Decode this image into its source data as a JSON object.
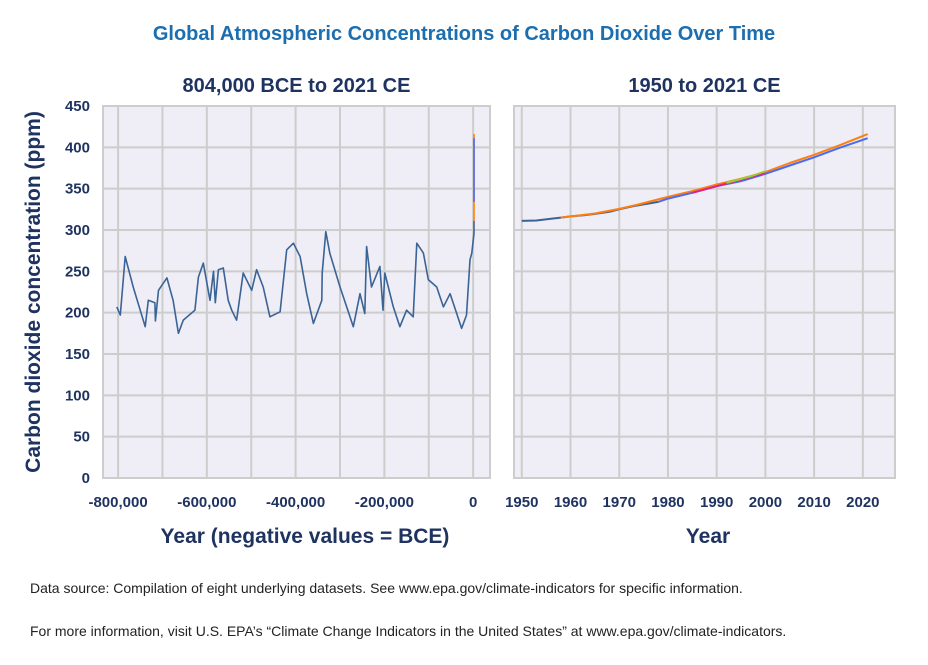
{
  "title": "Global Atmospheric Concentrations of Carbon Dioxide Over Time",
  "footnotes": [
    "Data source: Compilation of eight underlying datasets. See www.epa.gov/climate-indicators for specific information.",
    "For more information, visit U.S. EPA’s “Climate Change Indicators in the United States” at www.epa.gov/climate-indicators."
  ],
  "colors": {
    "title": "#1b6eb0",
    "text": "#1f3361",
    "plot_bg": "#efedf5",
    "grid": "#cdcdcd",
    "series": [
      "#3a6496",
      "#4a6cf0",
      "#ff7f0e",
      "#e0218a",
      "#9acd32"
    ]
  },
  "chart_data": [
    {
      "type": "line",
      "title": "804,000 BCE to 2021 CE",
      "xlabel": "Year (negative values = BCE)",
      "ylabel": "Carbon dioxide concentration (ppm)",
      "xlim": [
        -834000,
        38000
      ],
      "ylim": [
        0,
        450
      ],
      "grid": true,
      "xticks": [
        -800000,
        -600000,
        -400000,
        -200000,
        0
      ],
      "xtick_labels": [
        "-800,000",
        "-600,000",
        "-400,000",
        "-200,000",
        "0"
      ],
      "yticks": [
        0,
        50,
        100,
        150,
        200,
        250,
        300,
        350,
        400,
        450
      ],
      "series": [
        {
          "color": "#3a6496",
          "points": [
            [
              -803000,
              207
            ],
            [
              -795000,
              197
            ],
            [
              -784000,
              268
            ],
            [
              -766000,
              231
            ],
            [
              -739000,
              183
            ],
            [
              -732000,
              215
            ],
            [
              -717000,
              212
            ],
            [
              -716000,
              190
            ],
            [
              -709000,
              227
            ],
            [
              -690000,
              242
            ],
            [
              -676000,
              215
            ],
            [
              -664000,
              175
            ],
            [
              -653000,
              191
            ],
            [
              -627000,
              203
            ],
            [
              -619000,
              243
            ],
            [
              -608000,
              260
            ],
            [
              -593000,
              215
            ],
            [
              -585000,
              250
            ],
            [
              -581000,
              212
            ],
            [
              -574000,
              252
            ],
            [
              -563000,
              254
            ],
            [
              -552000,
              215
            ],
            [
              -544000,
              203
            ],
            [
              -533000,
              191
            ],
            [
              -518000,
              248
            ],
            [
              -499000,
              227
            ],
            [
              -488000,
              252
            ],
            [
              -473000,
              231
            ],
            [
              -458000,
              195
            ],
            [
              -435000,
              201
            ],
            [
              -420000,
              276
            ],
            [
              -405000,
              284
            ],
            [
              -390000,
              268
            ],
            [
              -375000,
              223
            ],
            [
              -360000,
              187
            ],
            [
              -341000,
              215
            ],
            [
              -340000,
              248
            ],
            [
              -332000,
              298
            ],
            [
              -323000,
              272
            ],
            [
              -300000,
              231
            ],
            [
              -285000,
              207
            ],
            [
              -270000,
              183
            ],
            [
              -255000,
              223
            ],
            [
              -244000,
              199
            ],
            [
              -240000,
              280
            ],
            [
              -229000,
              231
            ],
            [
              -210000,
              256
            ],
            [
              -203000,
              203
            ],
            [
              -199000,
              248
            ],
            [
              -180000,
              207
            ],
            [
              -165000,
              183
            ],
            [
              -150000,
              203
            ],
            [
              -135000,
              195
            ],
            [
              -127000,
              284
            ],
            [
              -112000,
              272
            ],
            [
              -101000,
              240
            ],
            [
              -82000,
              231
            ],
            [
              -67000,
              207
            ],
            [
              -52000,
              223
            ],
            [
              -37000,
              199
            ],
            [
              -26000,
              181
            ],
            [
              -15000,
              197
            ],
            [
              -7000,
              264
            ],
            [
              -3000,
              272
            ],
            [
              1900,
              296
            ],
            [
              1950,
              311
            ]
          ]
        },
        {
          "color": "#ff7f0e",
          "points": [
            [
              1950,
              311
            ],
            [
              1970,
              330
            ],
            [
              2021,
              416
            ]
          ]
        },
        {
          "color": "#4a6cf0",
          "points": [
            [
              1978,
              334
            ],
            [
              2021,
              411
            ]
          ]
        }
      ]
    },
    {
      "type": "line",
      "title": "1950 to 2021 CE",
      "xlabel": "Year",
      "xlim": [
        1948.4,
        2026.6
      ],
      "ylim": [
        0,
        450
      ],
      "grid": true,
      "xticks": [
        1950,
        1960,
        1970,
        1980,
        1990,
        2000,
        2010,
        2020
      ],
      "yticks": [
        0,
        50,
        100,
        150,
        200,
        250,
        300,
        350,
        400,
        450
      ],
      "series": [
        {
          "color": "#3a6496",
          "points": [
            [
              1950,
              311
            ],
            [
              1953,
              311.5
            ],
            [
              1956,
              313.5
            ],
            [
              1958,
              315
            ],
            [
              1960,
              316.5
            ],
            [
              1963,
              318
            ],
            [
              1965,
              319.5
            ],
            [
              1968,
              322
            ],
            [
              1970,
              325
            ],
            [
              1973,
              329
            ],
            [
              1975,
              331
            ],
            [
              1978,
              334
            ]
          ]
        },
        {
          "color": "#ff7f0e",
          "points": [
            [
              1958,
              315
            ],
            [
              1965,
              320
            ],
            [
              1970,
              325.5
            ],
            [
              1974,
              331
            ],
            [
              1980,
              340
            ],
            [
              1985,
              347
            ],
            [
              1990,
              355
            ],
            [
              1995,
              362
            ],
            [
              2000,
              370
            ],
            [
              2005,
              381
            ],
            [
              2010,
              391
            ],
            [
              2015,
              402
            ],
            [
              2021,
              416
            ]
          ]
        },
        {
          "color": "#4a6cf0",
          "points": [
            [
              1978,
              334
            ],
            [
              1980,
              338
            ],
            [
              1985,
              345
            ],
            [
              1990,
              353
            ],
            [
              1995,
              359
            ],
            [
              2000,
              368
            ],
            [
              2005,
              378
            ],
            [
              2010,
              388
            ],
            [
              2015,
              399
            ],
            [
              2021,
              411
            ]
          ]
        },
        {
          "color": "#e0218a",
          "points": [
            [
              1985,
              345
            ],
            [
              1990,
              353
            ],
            [
              1995,
              361
            ],
            [
              2000,
              369
            ]
          ]
        },
        {
          "color": "#9acd32",
          "points": [
            [
              1992,
              357
            ],
            [
              1997,
              365
            ],
            [
              2000,
              371
            ]
          ]
        }
      ]
    }
  ]
}
